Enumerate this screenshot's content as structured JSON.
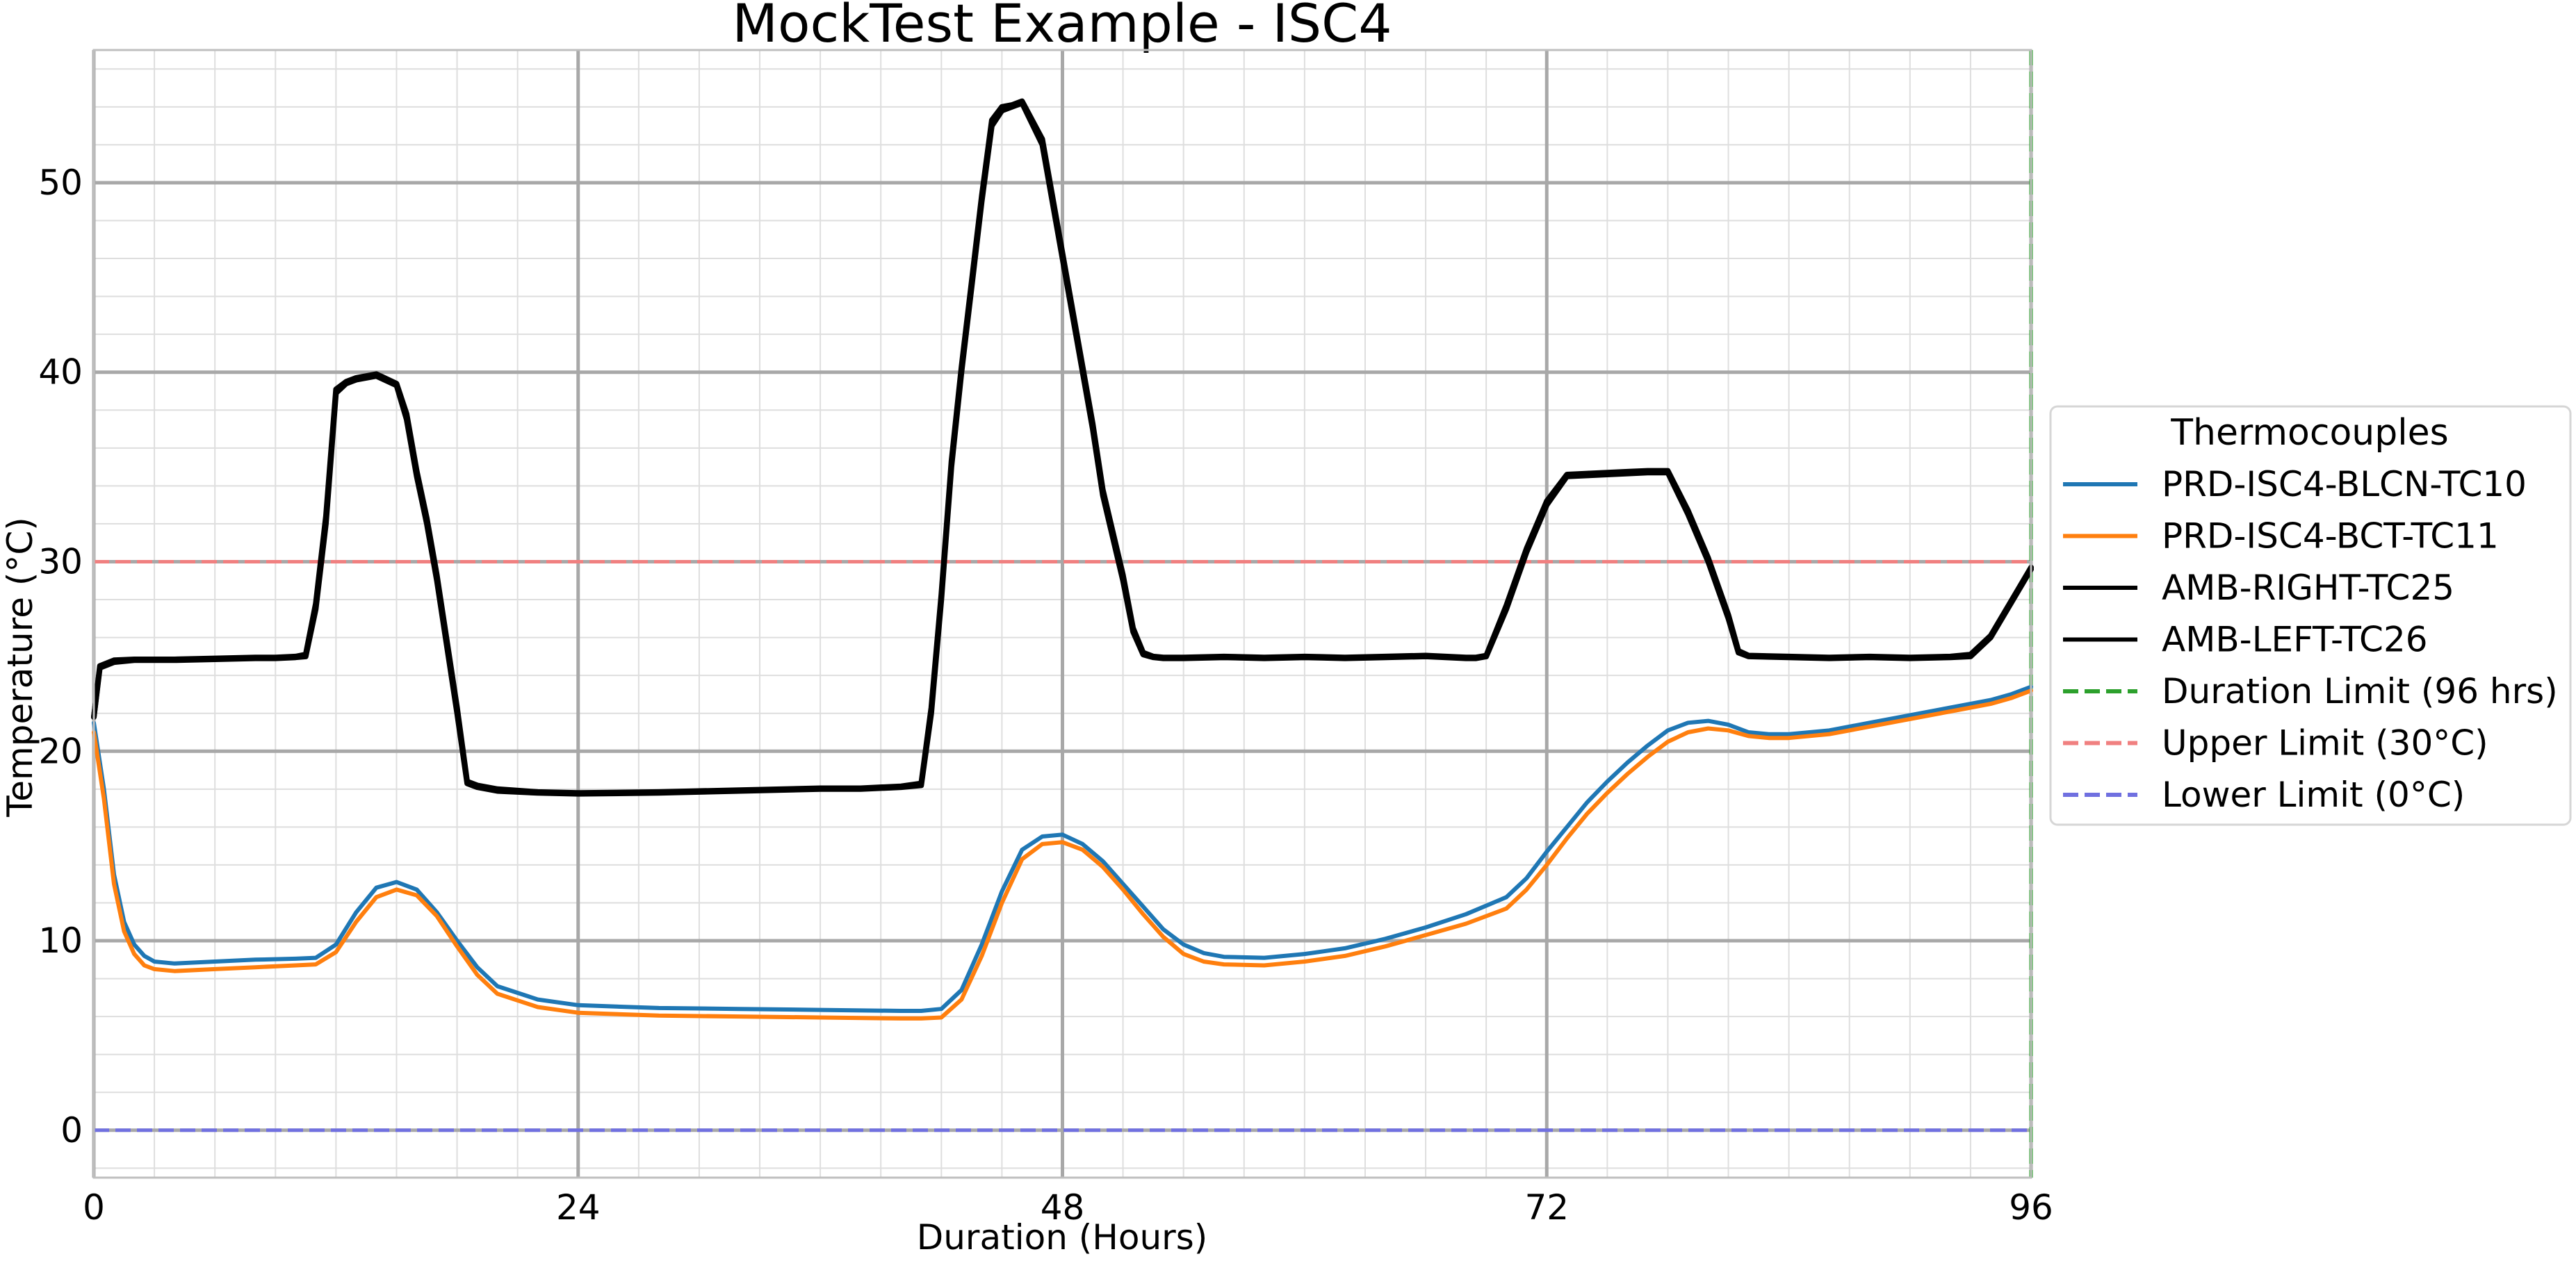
{
  "chart_data": {
    "type": "line",
    "title": "MockTest Example - ISC4",
    "xlabel": "Duration (Hours)",
    "ylabel": "Temperature (°C)",
    "xlim": [
      0,
      96
    ],
    "ylim": [
      -2.5,
      57
    ],
    "x_ticks": [
      0,
      24,
      48,
      72,
      96
    ],
    "x_tick_labels": [
      "0",
      "24",
      "48",
      "72",
      "96"
    ],
    "x_minor_step": 3,
    "y_ticks": [
      0,
      10,
      20,
      30,
      40,
      50
    ],
    "y_tick_labels": [
      "0",
      "10",
      "20",
      "30",
      "40",
      "50"
    ],
    "y_minor_step": 2,
    "grid": true,
    "legend": {
      "title": "Thermocouples",
      "placement": "outside-right",
      "entries": [
        {
          "label": "PRD-ISC4-BLCN-TC10",
          "color": "#1f77b4",
          "style": "solid"
        },
        {
          "label": "PRD-ISC4-BCT-TC11",
          "color": "#ff7f0e",
          "style": "solid"
        },
        {
          "label": "AMB-RIGHT-TC25",
          "color": "#000000",
          "style": "solid"
        },
        {
          "label": "AMB-LEFT-TC26",
          "color": "#000000",
          "style": "solid"
        },
        {
          "label": "Duration Limit (96 hrs)",
          "color": "#2ca02c",
          "style": "dashed"
        },
        {
          "label": "Upper Limit (30°C)",
          "color": "#f08080",
          "style": "dashed"
        },
        {
          "label": "Lower Limit (0°C)",
          "color": "#7070e0",
          "style": "dashed"
        }
      ]
    },
    "series": [
      {
        "name": "PRD-ISC4-BLCN-TC10",
        "color": "#1f77b4",
        "x": [
          0,
          0.5,
          1,
          1.5,
          2,
          2.5,
          3,
          4,
          6,
          8,
          10,
          11,
          12,
          13,
          14,
          15,
          16,
          17,
          18,
          19,
          20,
          22,
          24,
          28,
          32,
          36,
          40,
          41,
          42,
          43,
          44,
          45,
          46,
          47,
          48,
          49,
          50,
          51,
          52,
          53,
          54,
          55,
          56,
          58,
          60,
          62,
          64,
          66,
          68,
          70,
          71,
          72,
          73,
          74,
          75,
          76,
          77,
          78,
          79,
          80,
          81,
          82,
          83,
          84,
          86,
          88,
          90,
          92,
          94,
          95,
          96
        ],
        "y": [
          21.5,
          18,
          13.5,
          11,
          9.8,
          9.2,
          8.9,
          8.8,
          8.9,
          9.0,
          9.05,
          9.1,
          9.8,
          11.5,
          12.8,
          13.1,
          12.7,
          11.5,
          10.0,
          8.6,
          7.6,
          6.9,
          6.6,
          6.45,
          6.4,
          6.35,
          6.3,
          6.3,
          6.4,
          7.4,
          9.8,
          12.6,
          14.8,
          15.5,
          15.6,
          15.1,
          14.2,
          13.0,
          11.8,
          10.6,
          9.8,
          9.35,
          9.15,
          9.1,
          9.3,
          9.6,
          10.1,
          10.7,
          11.4,
          12.3,
          13.3,
          14.7,
          16.0,
          17.3,
          18.4,
          19.4,
          20.3,
          21.1,
          21.5,
          21.6,
          21.4,
          21.0,
          20.9,
          20.9,
          21.1,
          21.5,
          21.9,
          22.3,
          22.7,
          23.0,
          23.4
        ]
      },
      {
        "name": "PRD-ISC4-BCT-TC11",
        "color": "#ff7f0e",
        "x": [
          0,
          0.5,
          1,
          1.5,
          2,
          2.5,
          3,
          4,
          6,
          8,
          10,
          11,
          12,
          13,
          14,
          15,
          16,
          17,
          18,
          19,
          20,
          22,
          24,
          28,
          32,
          36,
          40,
          41,
          42,
          43,
          44,
          45,
          46,
          47,
          48,
          49,
          50,
          51,
          52,
          53,
          54,
          55,
          56,
          58,
          60,
          62,
          64,
          66,
          68,
          70,
          71,
          72,
          73,
          74,
          75,
          76,
          77,
          78,
          79,
          80,
          81,
          82,
          83,
          84,
          86,
          88,
          90,
          92,
          94,
          95,
          96
        ],
        "y": [
          21.0,
          17.5,
          13.0,
          10.5,
          9.3,
          8.7,
          8.5,
          8.4,
          8.5,
          8.6,
          8.7,
          8.75,
          9.4,
          11.0,
          12.3,
          12.7,
          12.4,
          11.3,
          9.7,
          8.2,
          7.2,
          6.5,
          6.2,
          6.05,
          6.0,
          5.95,
          5.9,
          5.9,
          5.95,
          6.9,
          9.2,
          12.0,
          14.3,
          15.1,
          15.2,
          14.8,
          13.9,
          12.7,
          11.4,
          10.2,
          9.3,
          8.9,
          8.75,
          8.7,
          8.9,
          9.2,
          9.7,
          10.3,
          10.9,
          11.7,
          12.7,
          14.0,
          15.4,
          16.7,
          17.8,
          18.8,
          19.7,
          20.5,
          21.0,
          21.2,
          21.1,
          20.8,
          20.7,
          20.7,
          20.9,
          21.3,
          21.7,
          22.1,
          22.5,
          22.8,
          23.2
        ]
      },
      {
        "name": "AMB-RIGHT-TC25",
        "color": "#000000",
        "x": [
          0,
          0.3,
          1,
          2,
          4,
          6,
          8,
          9,
          10,
          10.5,
          11,
          11.5,
          12,
          12.5,
          13,
          14,
          15,
          15.5,
          16,
          16.5,
          17,
          18,
          18.5,
          19,
          20,
          22,
          24,
          28,
          32,
          36,
          38,
          40,
          41,
          41.5,
          42,
          42.5,
          43,
          43.5,
          44,
          44.5,
          45,
          45.5,
          46,
          47,
          48,
          48.5,
          49,
          49.5,
          50,
          51,
          51.5,
          52,
          52.5,
          53,
          54,
          56,
          58,
          60,
          62,
          64,
          66,
          68,
          68.5,
          69,
          70,
          71,
          72,
          73,
          74,
          75,
          76,
          77,
          78,
          79,
          80,
          81,
          81.5,
          82,
          84,
          86,
          88,
          90,
          92,
          93,
          94,
          95,
          96
        ],
        "y": [
          21.8,
          24.4,
          24.7,
          24.8,
          24.8,
          24.85,
          24.9,
          24.9,
          24.95,
          25.0,
          27.5,
          32,
          38.9,
          39.4,
          39.6,
          39.8,
          39.3,
          37.5,
          34.5,
          32,
          29,
          22,
          18.3,
          18.1,
          17.9,
          17.8,
          17.75,
          17.8,
          17.9,
          18.0,
          18.0,
          18.1,
          18.2,
          22,
          28,
          35,
          40,
          44.5,
          49,
          53,
          53.8,
          54.0,
          54.2,
          52,
          46,
          43,
          40,
          37,
          33.5,
          29,
          26.3,
          25.1,
          24.95,
          24.9,
          24.9,
          24.95,
          24.9,
          24.95,
          24.9,
          24.95,
          25.0,
          24.9,
          24.9,
          25.0,
          27.5,
          30.5,
          33,
          34.5,
          34.55,
          34.6,
          34.65,
          34.7,
          34.7,
          32.5,
          30,
          27,
          25.2,
          25.0,
          24.95,
          24.9,
          24.95,
          24.9,
          24.95,
          25.0,
          26.0,
          27.8,
          29.6
        ]
      },
      {
        "name": "AMB-LEFT-TC26",
        "color": "#000000",
        "x": [
          0,
          0.3,
          1,
          2,
          4,
          6,
          8,
          9,
          10,
          10.5,
          11,
          11.5,
          12,
          12.5,
          13,
          14,
          15,
          15.5,
          16,
          16.5,
          17,
          18,
          18.5,
          19,
          20,
          22,
          24,
          28,
          32,
          36,
          38,
          40,
          41,
          41.5,
          42,
          42.5,
          43,
          43.5,
          44,
          44.5,
          45,
          45.5,
          46,
          47,
          48,
          48.5,
          49,
          49.5,
          50,
          51,
          51.5,
          52,
          52.5,
          53,
          54,
          56,
          58,
          60,
          62,
          64,
          66,
          68,
          68.5,
          69,
          70,
          71,
          72,
          73,
          74,
          75,
          76,
          77,
          78,
          79,
          80,
          81,
          81.5,
          82,
          84,
          86,
          88,
          90,
          92,
          93,
          94,
          95,
          96
        ],
        "y": [
          21.8,
          24.5,
          24.8,
          24.85,
          24.85,
          24.9,
          24.95,
          24.95,
          25.0,
          25.1,
          27.8,
          32.4,
          39.1,
          39.5,
          39.7,
          39.9,
          39.4,
          37.8,
          34.8,
          32.3,
          29.3,
          22.3,
          18.4,
          18.2,
          18.0,
          17.85,
          17.8,
          17.85,
          17.95,
          18.05,
          18.05,
          18.15,
          18.3,
          22.3,
          28.3,
          35.3,
          40.3,
          44.8,
          49.3,
          53.3,
          54.0,
          54.1,
          54.3,
          52.3,
          46.3,
          43.3,
          40.3,
          37.3,
          33.8,
          29.3,
          26.5,
          25.2,
          25.0,
          24.95,
          24.95,
          25.0,
          24.95,
          25.0,
          24.95,
          25.0,
          25.05,
          24.95,
          24.95,
          25.05,
          27.7,
          30.7,
          33.2,
          34.6,
          34.65,
          34.7,
          34.75,
          34.8,
          34.8,
          32.7,
          30.2,
          27.2,
          25.3,
          25.05,
          25.0,
          24.95,
          25.0,
          24.95,
          25.0,
          25.1,
          26.1,
          27.9,
          29.7
        ]
      }
    ],
    "reference_lines": [
      {
        "name": "Duration Limit (96 hrs)",
        "orientation": "vertical",
        "value": 96,
        "color": "#2ca02c"
      },
      {
        "name": "Upper Limit (30°C)",
        "orientation": "horizontal",
        "value": 30,
        "color": "#f08080"
      },
      {
        "name": "Lower Limit (0°C)",
        "orientation": "horizontal",
        "value": 0,
        "color": "#7070e0"
      }
    ]
  }
}
